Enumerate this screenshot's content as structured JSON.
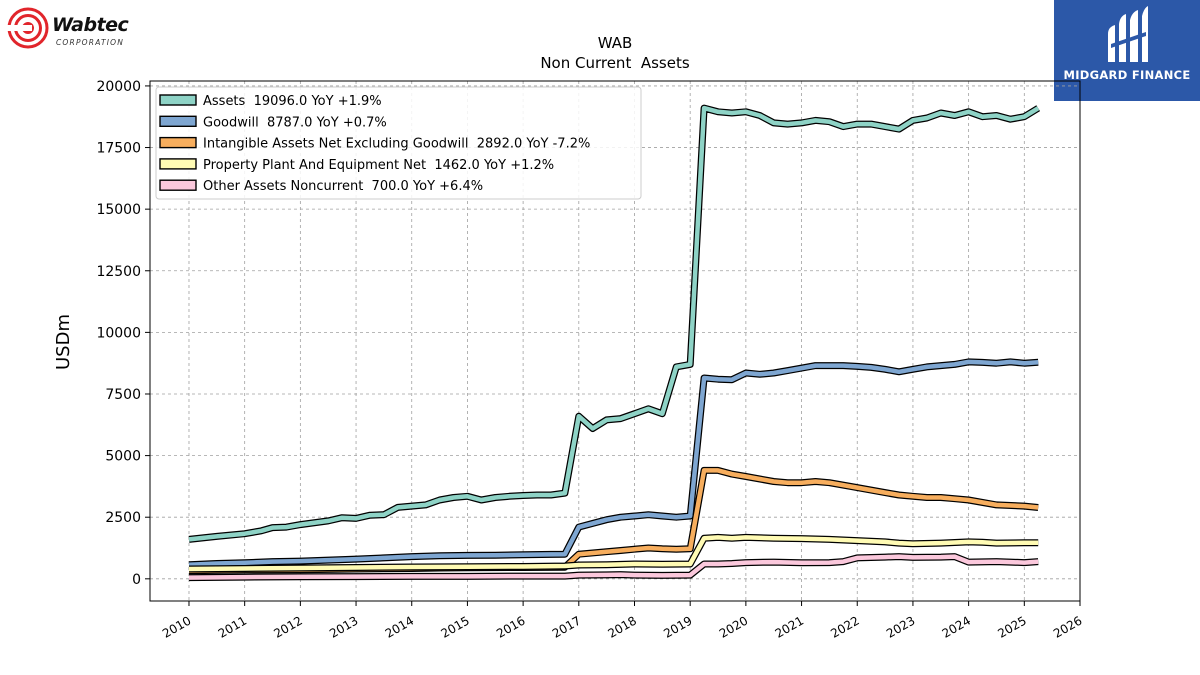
{
  "company_logo": {
    "name": "Wabtec",
    "subtitle": "CORPORATION",
    "color": "#e1252b"
  },
  "partner_logo": {
    "name": "MIDGARD FINANCE",
    "background": "#2c58a8"
  },
  "chart_data": {
    "type": "line",
    "title": "WAB",
    "subtitle": "Non Current  Assets",
    "ylabel": "USDm",
    "xlabel": "",
    "xlim": [
      2009.3,
      2026.0
    ],
    "ylim": [
      -900,
      20200
    ],
    "x_ticks": [
      2010,
      2011,
      2012,
      2013,
      2014,
      2015,
      2016,
      2017,
      2018,
      2019,
      2020,
      2021,
      2022,
      2023,
      2024,
      2025,
      2026
    ],
    "y_ticks": [
      0,
      2500,
      5000,
      7500,
      10000,
      12500,
      15000,
      17500,
      20000
    ],
    "grid": true,
    "legend_position": "top-left",
    "series": [
      {
        "name": "Assets",
        "legend": "Assets  19096.0 YoY +1.9%",
        "color": "#8ed3c6",
        "points": [
          [
            2010.0,
            1600
          ],
          [
            2010.5,
            1720
          ],
          [
            2011.0,
            1830
          ],
          [
            2011.3,
            1950
          ],
          [
            2011.5,
            2080
          ],
          [
            2011.75,
            2100
          ],
          [
            2012.0,
            2200
          ],
          [
            2012.5,
            2350
          ],
          [
            2012.75,
            2480
          ],
          [
            2013.0,
            2450
          ],
          [
            2013.25,
            2580
          ],
          [
            2013.5,
            2600
          ],
          [
            2013.75,
            2900
          ],
          [
            2014.0,
            2950
          ],
          [
            2014.25,
            3000
          ],
          [
            2014.5,
            3200
          ],
          [
            2014.75,
            3300
          ],
          [
            2015.0,
            3350
          ],
          [
            2015.25,
            3200
          ],
          [
            2015.5,
            3300
          ],
          [
            2015.75,
            3350
          ],
          [
            2016.0,
            3380
          ],
          [
            2016.25,
            3400
          ],
          [
            2016.5,
            3400
          ],
          [
            2016.75,
            3480
          ],
          [
            2017.0,
            6600
          ],
          [
            2017.25,
            6100
          ],
          [
            2017.5,
            6450
          ],
          [
            2017.75,
            6500
          ],
          [
            2018.0,
            6700
          ],
          [
            2018.25,
            6900
          ],
          [
            2018.5,
            6700
          ],
          [
            2018.75,
            8600
          ],
          [
            2019.0,
            8700
          ],
          [
            2019.25,
            19100
          ],
          [
            2019.5,
            18950
          ],
          [
            2019.75,
            18900
          ],
          [
            2020.0,
            18950
          ],
          [
            2020.25,
            18800
          ],
          [
            2020.5,
            18500
          ],
          [
            2020.75,
            18450
          ],
          [
            2021.0,
            18500
          ],
          [
            2021.25,
            18600
          ],
          [
            2021.5,
            18550
          ],
          [
            2021.75,
            18350
          ],
          [
            2022.0,
            18450
          ],
          [
            2022.25,
            18450
          ],
          [
            2022.5,
            18350
          ],
          [
            2022.75,
            18250
          ],
          [
            2023.0,
            18600
          ],
          [
            2023.25,
            18700
          ],
          [
            2023.5,
            18900
          ],
          [
            2023.75,
            18800
          ],
          [
            2024.0,
            18950
          ],
          [
            2024.25,
            18750
          ],
          [
            2024.5,
            18800
          ],
          [
            2024.75,
            18650
          ],
          [
            2025.0,
            18750
          ],
          [
            2025.25,
            19096
          ]
        ]
      },
      {
        "name": "Goodwill",
        "legend": "Goodwill  8787.0 YoY +0.7%",
        "color": "#7ea6d1",
        "points": [
          [
            2010.0,
            570
          ],
          [
            2010.5,
            620
          ],
          [
            2011.0,
            650
          ],
          [
            2011.5,
            700
          ],
          [
            2012.0,
            720
          ],
          [
            2012.5,
            760
          ],
          [
            2013.0,
            800
          ],
          [
            2013.5,
            850
          ],
          [
            2014.0,
            900
          ],
          [
            2014.5,
            940
          ],
          [
            2015.0,
            950
          ],
          [
            2015.5,
            960
          ],
          [
            2016.0,
            980
          ],
          [
            2016.5,
            990
          ],
          [
            2016.75,
            1000
          ],
          [
            2017.0,
            2100
          ],
          [
            2017.25,
            2250
          ],
          [
            2017.5,
            2400
          ],
          [
            2017.75,
            2500
          ],
          [
            2018.0,
            2550
          ],
          [
            2018.25,
            2600
          ],
          [
            2018.5,
            2550
          ],
          [
            2018.75,
            2500
          ],
          [
            2019.0,
            2550
          ],
          [
            2019.25,
            8150
          ],
          [
            2019.5,
            8100
          ],
          [
            2019.75,
            8080
          ],
          [
            2020.0,
            8350
          ],
          [
            2020.25,
            8300
          ],
          [
            2020.5,
            8350
          ],
          [
            2020.75,
            8450
          ],
          [
            2021.0,
            8550
          ],
          [
            2021.25,
            8650
          ],
          [
            2021.5,
            8650
          ],
          [
            2021.75,
            8650
          ],
          [
            2022.0,
            8620
          ],
          [
            2022.25,
            8580
          ],
          [
            2022.5,
            8500
          ],
          [
            2022.75,
            8400
          ],
          [
            2023.0,
            8500
          ],
          [
            2023.25,
            8600
          ],
          [
            2023.5,
            8650
          ],
          [
            2023.75,
            8700
          ],
          [
            2024.0,
            8800
          ],
          [
            2024.25,
            8780
          ],
          [
            2024.5,
            8750
          ],
          [
            2024.75,
            8800
          ],
          [
            2025.0,
            8750
          ],
          [
            2025.25,
            8787
          ]
        ]
      },
      {
        "name": "Intangible Assets Net Excluding Goodwill",
        "legend": "Intangible Assets Net Excluding Goodwill  2892.0 YoY -7.2%",
        "color": "#f7ae5e",
        "points": [
          [
            2010.0,
            330
          ],
          [
            2011.0,
            360
          ],
          [
            2012.0,
            370
          ],
          [
            2013.0,
            400
          ],
          [
            2014.0,
            420
          ],
          [
            2014.5,
            440
          ],
          [
            2015.0,
            450
          ],
          [
            2016.0,
            460
          ],
          [
            2016.75,
            470
          ],
          [
            2017.0,
            1000
          ],
          [
            2017.5,
            1100
          ],
          [
            2017.75,
            1150
          ],
          [
            2018.0,
            1200
          ],
          [
            2018.25,
            1250
          ],
          [
            2018.5,
            1220
          ],
          [
            2018.75,
            1200
          ],
          [
            2019.0,
            1220
          ],
          [
            2019.25,
            4400
          ],
          [
            2019.5,
            4400
          ],
          [
            2019.75,
            4250
          ],
          [
            2020.0,
            4150
          ],
          [
            2020.5,
            3950
          ],
          [
            2020.75,
            3900
          ],
          [
            2021.0,
            3900
          ],
          [
            2021.25,
            3950
          ],
          [
            2021.5,
            3900
          ],
          [
            2022.0,
            3700
          ],
          [
            2022.5,
            3500
          ],
          [
            2022.75,
            3400
          ],
          [
            2023.0,
            3350
          ],
          [
            2023.25,
            3300
          ],
          [
            2023.5,
            3300
          ],
          [
            2023.75,
            3250
          ],
          [
            2024.0,
            3200
          ],
          [
            2024.5,
            3000
          ],
          [
            2025.0,
            2950
          ],
          [
            2025.25,
            2892
          ]
        ]
      },
      {
        "name": "Property Plant And Equipment Net",
        "legend": "Property Plant And Equipment Net  1462.0 YoY +1.2%",
        "color": "#fffbb4",
        "points": [
          [
            2010.0,
            400
          ],
          [
            2011.0,
            420
          ],
          [
            2012.0,
            440
          ],
          [
            2013.0,
            460
          ],
          [
            2014.0,
            480
          ],
          [
            2015.0,
            490
          ],
          [
            2016.0,
            500
          ],
          [
            2016.75,
            520
          ],
          [
            2017.0,
            560
          ],
          [
            2017.5,
            570
          ],
          [
            2018.0,
            600
          ],
          [
            2018.5,
            590
          ],
          [
            2019.0,
            600
          ],
          [
            2019.25,
            1650
          ],
          [
            2019.5,
            1680
          ],
          [
            2019.75,
            1650
          ],
          [
            2020.0,
            1680
          ],
          [
            2020.5,
            1650
          ],
          [
            2021.0,
            1630
          ],
          [
            2021.5,
            1600
          ],
          [
            2022.0,
            1550
          ],
          [
            2022.5,
            1500
          ],
          [
            2022.75,
            1450
          ],
          [
            2023.0,
            1420
          ],
          [
            2023.5,
            1450
          ],
          [
            2024.0,
            1500
          ],
          [
            2024.25,
            1480
          ],
          [
            2024.5,
            1450
          ],
          [
            2025.0,
            1460
          ],
          [
            2025.25,
            1462
          ]
        ]
      },
      {
        "name": "Other Assets Noncurrent",
        "legend": "Other Assets Noncurrent  700.0 YoY +6.4%",
        "color": "#fbc8dc",
        "points": [
          [
            2010.0,
            50
          ],
          [
            2011.0,
            70
          ],
          [
            2012.0,
            80
          ],
          [
            2013.0,
            90
          ],
          [
            2014.0,
            100
          ],
          [
            2015.0,
            100
          ],
          [
            2016.0,
            110
          ],
          [
            2016.75,
            110
          ],
          [
            2017.0,
            150
          ],
          [
            2017.5,
            160
          ],
          [
            2017.75,
            170
          ],
          [
            2018.0,
            150
          ],
          [
            2018.5,
            140
          ],
          [
            2019.0,
            150
          ],
          [
            2019.25,
            600
          ],
          [
            2019.5,
            600
          ],
          [
            2019.75,
            620
          ],
          [
            2020.0,
            660
          ],
          [
            2020.5,
            680
          ],
          [
            2021.0,
            650
          ],
          [
            2021.5,
            660
          ],
          [
            2021.75,
            700
          ],
          [
            2022.0,
            850
          ],
          [
            2022.5,
            880
          ],
          [
            2022.75,
            900
          ],
          [
            2023.0,
            870
          ],
          [
            2023.5,
            880
          ],
          [
            2023.75,
            900
          ],
          [
            2024.0,
            680
          ],
          [
            2024.5,
            700
          ],
          [
            2024.75,
            680
          ],
          [
            2025.0,
            660
          ],
          [
            2025.25,
            700
          ]
        ]
      }
    ]
  }
}
